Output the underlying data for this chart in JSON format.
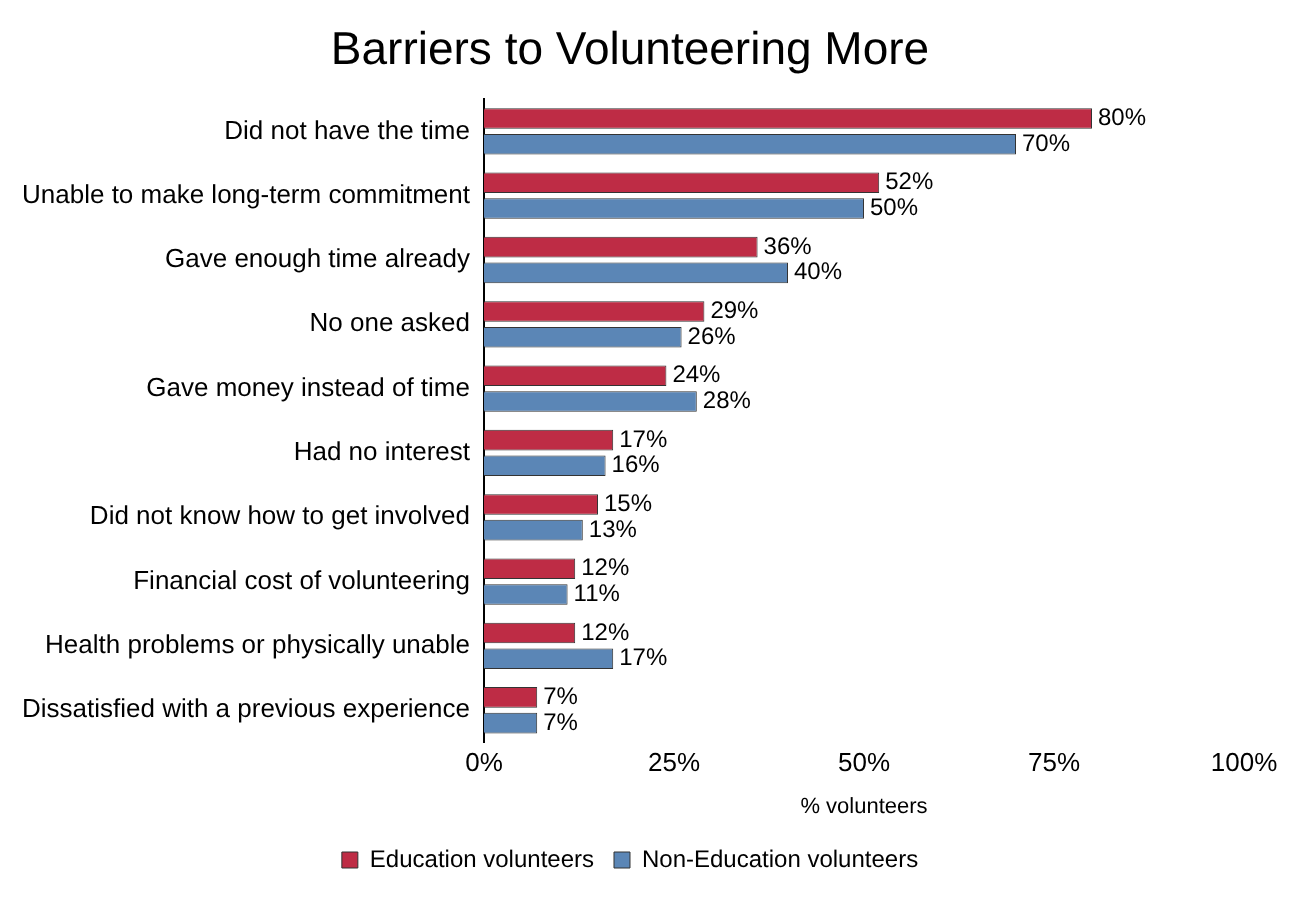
{
  "chart_data": {
    "type": "bar",
    "orientation": "horizontal",
    "title": "Barriers to Volunteering More",
    "xlabel": "% volunteers",
    "categories": [
      "Did not have the time",
      "Unable to make long-term commitment",
      "Gave enough time already",
      "No one asked",
      "Gave money instead of time",
      "Had no interest",
      "Did not know how to get involved",
      "Financial cost of volunteering",
      "Health problems or physically unable",
      "Dissatisfied with a previous experience"
    ],
    "series": [
      {
        "name": "Education volunteers",
        "color": "#be2c45",
        "values": [
          80,
          52,
          36,
          29,
          24,
          17,
          15,
          12,
          12,
          7
        ],
        "value_labels": [
          "80%",
          "52%",
          "36%",
          "29%",
          "24%",
          "17%",
          "15%",
          "12%",
          "12%",
          "7%"
        ]
      },
      {
        "name": "Non-Education volunteers",
        "color": "#5b86b6",
        "values": [
          70,
          50,
          40,
          26,
          28,
          16,
          13,
          11,
          17,
          7
        ],
        "value_labels": [
          "70%",
          "50%",
          "40%",
          "26%",
          "28%",
          "16%",
          "13%",
          "11%",
          "17%",
          "7%"
        ]
      }
    ],
    "xlim": [
      0,
      100
    ],
    "xticks": [
      {
        "value": 0,
        "label": "0%"
      },
      {
        "value": 25,
        "label": "25%"
      },
      {
        "value": 50,
        "label": "50%"
      },
      {
        "value": 75,
        "label": "75%"
      },
      {
        "value": 100,
        "label": "100%"
      }
    ],
    "grid": false,
    "legend": "bottom"
  }
}
